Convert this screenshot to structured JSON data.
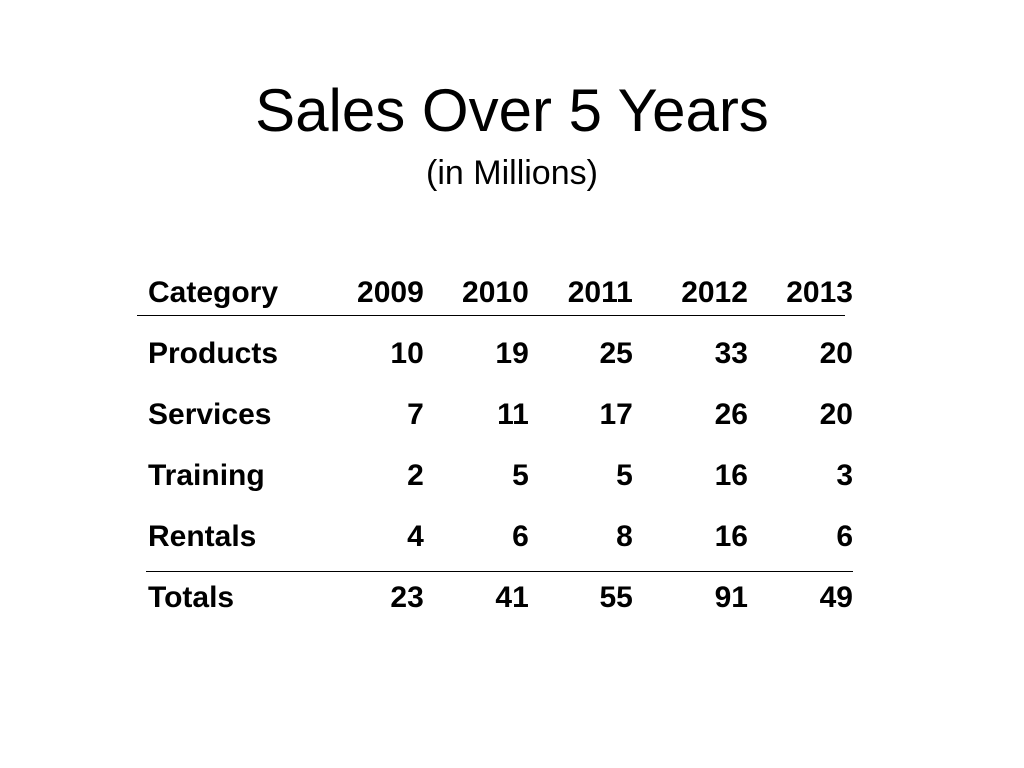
{
  "slide": {
    "title": "Sales Over 5 Years",
    "subtitle": "(in Millions)"
  },
  "chart_data": {
    "type": "table",
    "title": "Sales Over 5 Years",
    "subtitle": "(in Millions)",
    "columns": [
      "Category",
      "2009",
      "2010",
      "2011",
      "2012",
      "2013"
    ],
    "rows": [
      {
        "label": "Products",
        "values": [
          "10",
          "19",
          "25",
          "33",
          "20"
        ]
      },
      {
        "label": "Services",
        "values": [
          "7",
          "11",
          "17",
          "26",
          "20"
        ]
      },
      {
        "label": "Training",
        "values": [
          "2",
          "5",
          "5",
          "16",
          "3"
        ]
      },
      {
        "label": "Rentals",
        "values": [
          "4",
          "6",
          "8",
          "16",
          "6"
        ]
      }
    ],
    "totals": {
      "label": "Totals",
      "values": [
        "23",
        "41",
        "55",
        "91",
        "49"
      ]
    }
  }
}
